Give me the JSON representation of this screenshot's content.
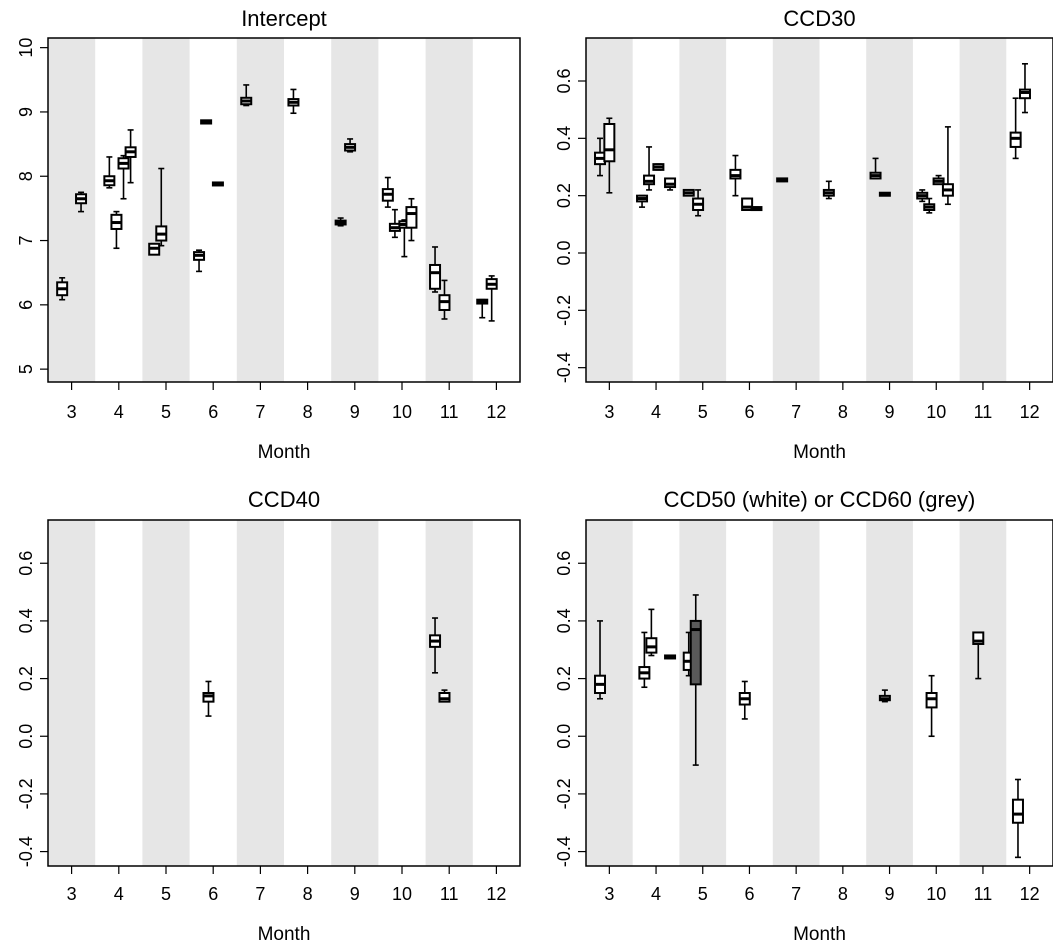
{
  "chart_data": [
    {
      "type": "boxplot",
      "title": "Intercept",
      "xlabel": "Month",
      "ylabel": "",
      "x_ticks": [
        3,
        4,
        5,
        6,
        7,
        8,
        9,
        10,
        11,
        12
      ],
      "y_ticks": [
        5,
        6,
        7,
        8,
        9,
        10
      ],
      "xlim": [
        2.5,
        12.5
      ],
      "ylim": [
        4.8,
        10.15
      ],
      "shaded_months": [
        3,
        5,
        7,
        9,
        11
      ],
      "boxes": [
        {
          "month": 2.8,
          "fill": "white",
          "whisker_low": 6.08,
          "q1": 6.15,
          "median": 6.25,
          "q3": 6.35,
          "whisker_high": 6.42
        },
        {
          "month": 3.2,
          "fill": "white",
          "whisker_low": 7.45,
          "q1": 7.58,
          "median": 7.65,
          "q3": 7.72,
          "whisker_high": 7.75
        },
        {
          "month": 3.8,
          "fill": "white",
          "whisker_low": 7.82,
          "q1": 7.86,
          "median": 7.93,
          "q3": 8.0,
          "whisker_high": 8.3
        },
        {
          "month": 3.95,
          "fill": "white",
          "whisker_low": 6.88,
          "q1": 7.18,
          "median": 7.28,
          "q3": 7.4,
          "whisker_high": 7.45
        },
        {
          "month": 4.1,
          "fill": "white",
          "whisker_low": 7.65,
          "q1": 8.12,
          "median": 8.2,
          "q3": 8.28,
          "whisker_high": 8.32
        },
        {
          "month": 4.25,
          "fill": "white",
          "whisker_low": 7.9,
          "q1": 8.3,
          "median": 8.38,
          "q3": 8.45,
          "whisker_high": 8.72
        },
        {
          "month": 4.75,
          "fill": "white",
          "whisker_low": 6.78,
          "q1": 6.78,
          "median": 6.88,
          "q3": 6.95,
          "whisker_high": 6.95
        },
        {
          "month": 4.9,
          "fill": "white",
          "whisker_low": 6.92,
          "q1": 7.0,
          "median": 7.1,
          "q3": 7.22,
          "whisker_high": 8.12
        },
        {
          "month": 5.7,
          "fill": "white",
          "whisker_low": 6.52,
          "q1": 6.7,
          "median": 6.77,
          "q3": 6.82,
          "whisker_high": 6.85
        },
        {
          "month": 5.85,
          "fill": "white",
          "whisker_low": 8.82,
          "q1": 8.82,
          "median": 8.85,
          "q3": 8.87,
          "whisker_high": 8.87
        },
        {
          "month": 6.1,
          "fill": "white",
          "whisker_low": 7.86,
          "q1": 7.86,
          "median": 7.88,
          "q3": 7.9,
          "whisker_high": 7.9
        },
        {
          "month": 6.7,
          "fill": "white",
          "whisker_low": 9.1,
          "q1": 9.12,
          "median": 9.17,
          "q3": 9.22,
          "whisker_high": 9.42
        },
        {
          "month": 7.7,
          "fill": "white",
          "whisker_low": 8.98,
          "q1": 9.1,
          "median": 9.15,
          "q3": 9.2,
          "whisker_high": 9.35
        },
        {
          "month": 8.7,
          "fill": "white",
          "whisker_low": 7.23,
          "q1": 7.25,
          "median": 7.28,
          "q3": 7.31,
          "whisker_high": 7.35
        },
        {
          "month": 8.9,
          "fill": "white",
          "whisker_low": 8.38,
          "q1": 8.4,
          "median": 8.45,
          "q3": 8.5,
          "whisker_high": 8.58
        },
        {
          "month": 9.7,
          "fill": "white",
          "whisker_low": 7.52,
          "q1": 7.62,
          "median": 7.72,
          "q3": 7.8,
          "whisker_high": 7.98
        },
        {
          "month": 9.85,
          "fill": "white",
          "whisker_low": 7.05,
          "q1": 7.15,
          "median": 7.2,
          "q3": 7.26,
          "whisker_high": 7.48
        },
        {
          "month": 10.05,
          "fill": "white",
          "whisker_low": 6.75,
          "q1": 7.2,
          "median": 7.25,
          "q3": 7.3,
          "whisker_high": 7.32
        },
        {
          "month": 10.2,
          "fill": "white",
          "whisker_low": 7.0,
          "q1": 7.2,
          "median": 7.42,
          "q3": 7.52,
          "whisker_high": 7.65
        },
        {
          "month": 10.7,
          "fill": "white",
          "whisker_low": 6.2,
          "q1": 6.25,
          "median": 6.5,
          "q3": 6.62,
          "whisker_high": 6.9
        },
        {
          "month": 10.9,
          "fill": "white",
          "whisker_low": 5.78,
          "q1": 5.92,
          "median": 6.05,
          "q3": 6.15,
          "whisker_high": 6.38
        },
        {
          "month": 11.7,
          "fill": "white",
          "whisker_low": 5.8,
          "q1": 6.02,
          "median": 6.05,
          "q3": 6.08,
          "whisker_high": 6.08
        },
        {
          "month": 11.9,
          "fill": "white",
          "whisker_low": 5.75,
          "q1": 6.25,
          "median": 6.32,
          "q3": 6.4,
          "whisker_high": 6.45
        }
      ]
    },
    {
      "type": "boxplot",
      "title": "CCD30",
      "xlabel": "Month",
      "ylabel": "",
      "x_ticks": [
        3,
        4,
        5,
        6,
        7,
        8,
        9,
        10,
        11,
        12
      ],
      "y_ticks": [
        -0.4,
        -0.2,
        0.0,
        0.2,
        0.4,
        0.6
      ],
      "xlim": [
        2.5,
        12.5
      ],
      "ylim": [
        -0.45,
        0.75
      ],
      "shaded_months": [
        3,
        5,
        7,
        9,
        11
      ],
      "boxes": [
        {
          "month": 2.8,
          "fill": "white",
          "whisker_low": 0.27,
          "q1": 0.31,
          "median": 0.33,
          "q3": 0.35,
          "whisker_high": 0.4
        },
        {
          "month": 3.0,
          "fill": "white",
          "whisker_low": 0.21,
          "q1": 0.32,
          "median": 0.36,
          "q3": 0.45,
          "whisker_high": 0.47
        },
        {
          "month": 3.7,
          "fill": "white",
          "whisker_low": 0.16,
          "q1": 0.18,
          "median": 0.19,
          "q3": 0.2,
          "whisker_high": 0.2
        },
        {
          "month": 3.85,
          "fill": "white",
          "whisker_low": 0.22,
          "q1": 0.24,
          "median": 0.25,
          "q3": 0.27,
          "whisker_high": 0.37
        },
        {
          "month": 4.05,
          "fill": "white",
          "whisker_low": 0.29,
          "q1": 0.29,
          "median": 0.3,
          "q3": 0.31,
          "whisker_high": 0.31
        },
        {
          "month": 4.3,
          "fill": "white",
          "whisker_low": 0.22,
          "q1": 0.23,
          "median": 0.24,
          "q3": 0.26,
          "whisker_high": 0.26
        },
        {
          "month": 4.7,
          "fill": "white",
          "whisker_low": 0.2,
          "q1": 0.2,
          "median": 0.21,
          "q3": 0.22,
          "whisker_high": 0.22
        },
        {
          "month": 4.9,
          "fill": "white",
          "whisker_low": 0.13,
          "q1": 0.15,
          "median": 0.17,
          "q3": 0.19,
          "whisker_high": 0.22
        },
        {
          "month": 5.7,
          "fill": "white",
          "whisker_low": 0.2,
          "q1": 0.26,
          "median": 0.27,
          "q3": 0.29,
          "whisker_high": 0.34
        },
        {
          "month": 5.95,
          "fill": "white",
          "whisker_low": 0.15,
          "q1": 0.15,
          "median": 0.16,
          "q3": 0.19,
          "whisker_high": 0.19
        },
        {
          "month": 6.15,
          "fill": "white",
          "whisker_low": 0.15,
          "q1": 0.15,
          "median": 0.155,
          "q3": 0.16,
          "whisker_high": 0.16
        },
        {
          "month": 6.7,
          "fill": "white",
          "whisker_low": 0.25,
          "q1": 0.25,
          "median": 0.255,
          "q3": 0.26,
          "whisker_high": 0.26
        },
        {
          "month": 7.7,
          "fill": "white",
          "whisker_low": 0.19,
          "q1": 0.2,
          "median": 0.21,
          "q3": 0.22,
          "whisker_high": 0.25
        },
        {
          "month": 8.7,
          "fill": "white",
          "whisker_low": 0.26,
          "q1": 0.26,
          "median": 0.27,
          "q3": 0.28,
          "whisker_high": 0.33
        },
        {
          "month": 8.9,
          "fill": "white",
          "whisker_low": 0.2,
          "q1": 0.2,
          "median": 0.205,
          "q3": 0.21,
          "whisker_high": 0.21
        },
        {
          "month": 9.7,
          "fill": "white",
          "whisker_low": 0.18,
          "q1": 0.19,
          "median": 0.2,
          "q3": 0.21,
          "whisker_high": 0.22
        },
        {
          "month": 9.85,
          "fill": "white",
          "whisker_low": 0.14,
          "q1": 0.15,
          "median": 0.16,
          "q3": 0.17,
          "whisker_high": 0.19
        },
        {
          "month": 10.05,
          "fill": "white",
          "whisker_low": 0.24,
          "q1": 0.24,
          "median": 0.25,
          "q3": 0.26,
          "whisker_high": 0.27
        },
        {
          "month": 10.25,
          "fill": "white",
          "whisker_low": 0.17,
          "q1": 0.2,
          "median": 0.22,
          "q3": 0.24,
          "whisker_high": 0.44
        },
        {
          "month": 11.7,
          "fill": "white",
          "whisker_low": 0.33,
          "q1": 0.37,
          "median": 0.4,
          "q3": 0.42,
          "whisker_high": 0.54
        },
        {
          "month": 11.9,
          "fill": "white",
          "whisker_low": 0.49,
          "q1": 0.54,
          "median": 0.56,
          "q3": 0.57,
          "whisker_high": 0.66
        }
      ]
    },
    {
      "type": "boxplot",
      "title": "CCD40",
      "xlabel": "Month",
      "ylabel": "",
      "x_ticks": [
        3,
        4,
        5,
        6,
        7,
        8,
        9,
        10,
        11,
        12
      ],
      "y_ticks": [
        -0.4,
        -0.2,
        0.0,
        0.2,
        0.4,
        0.6
      ],
      "xlim": [
        2.5,
        12.5
      ],
      "ylim": [
        -0.45,
        0.75
      ],
      "shaded_months": [
        3,
        5,
        7,
        9,
        11
      ],
      "boxes": [
        {
          "month": 5.9,
          "fill": "white",
          "whisker_low": 0.07,
          "q1": 0.12,
          "median": 0.14,
          "q3": 0.15,
          "whisker_high": 0.19
        },
        {
          "month": 10.7,
          "fill": "white",
          "whisker_low": 0.22,
          "q1": 0.31,
          "median": 0.33,
          "q3": 0.35,
          "whisker_high": 0.41
        },
        {
          "month": 10.9,
          "fill": "white",
          "whisker_low": 0.12,
          "q1": 0.12,
          "median": 0.13,
          "q3": 0.15,
          "whisker_high": 0.16
        }
      ]
    },
    {
      "type": "boxplot",
      "title": "CCD50 (white) or CCD60 (grey)",
      "xlabel": "Month",
      "ylabel": "",
      "x_ticks": [
        3,
        4,
        5,
        6,
        7,
        8,
        9,
        10,
        11,
        12
      ],
      "y_ticks": [
        -0.4,
        -0.2,
        0.0,
        0.2,
        0.4,
        0.6
      ],
      "xlim": [
        2.5,
        12.5
      ],
      "ylim": [
        -0.45,
        0.75
      ],
      "shaded_months": [
        3,
        5,
        7,
        9,
        11
      ],
      "boxes": [
        {
          "month": 2.8,
          "fill": "white",
          "whisker_low": 0.13,
          "q1": 0.15,
          "median": 0.18,
          "q3": 0.21,
          "whisker_high": 0.4
        },
        {
          "month": 3.75,
          "fill": "white",
          "whisker_low": 0.17,
          "q1": 0.2,
          "median": 0.22,
          "q3": 0.24,
          "whisker_high": 0.36
        },
        {
          "month": 3.9,
          "fill": "white",
          "whisker_low": 0.28,
          "q1": 0.29,
          "median": 0.31,
          "q3": 0.34,
          "whisker_high": 0.44
        },
        {
          "month": 4.3,
          "fill": "white",
          "whisker_low": 0.27,
          "q1": 0.27,
          "median": 0.275,
          "q3": 0.28,
          "whisker_high": 0.28
        },
        {
          "month": 4.7,
          "fill": "white",
          "whisker_low": 0.21,
          "q1": 0.23,
          "median": 0.26,
          "q3": 0.29,
          "whisker_high": 0.36
        },
        {
          "month": 4.85,
          "fill": "grey",
          "whisker_low": -0.1,
          "q1": 0.18,
          "median": 0.37,
          "q3": 0.4,
          "whisker_high": 0.49
        },
        {
          "month": 5.9,
          "fill": "white",
          "whisker_low": 0.06,
          "q1": 0.11,
          "median": 0.13,
          "q3": 0.15,
          "whisker_high": 0.19
        },
        {
          "month": 8.9,
          "fill": "white",
          "whisker_low": 0.12,
          "q1": 0.125,
          "median": 0.13,
          "q3": 0.14,
          "whisker_high": 0.16
        },
        {
          "month": 9.9,
          "fill": "white",
          "whisker_low": 0.0,
          "q1": 0.1,
          "median": 0.13,
          "q3": 0.15,
          "whisker_high": 0.21
        },
        {
          "month": 10.9,
          "fill": "white",
          "whisker_low": 0.2,
          "q1": 0.32,
          "median": 0.33,
          "q3": 0.36,
          "whisker_high": 0.36
        },
        {
          "month": 11.75,
          "fill": "white",
          "whisker_low": -0.42,
          "q1": -0.3,
          "median": -0.27,
          "q3": -0.22,
          "whisker_high": -0.15
        }
      ]
    }
  ],
  "colors": {
    "band": "#e6e6e6",
    "grey_box": "#5a5a5a",
    "white_box": "#ffffff",
    "stroke": "#000000"
  }
}
